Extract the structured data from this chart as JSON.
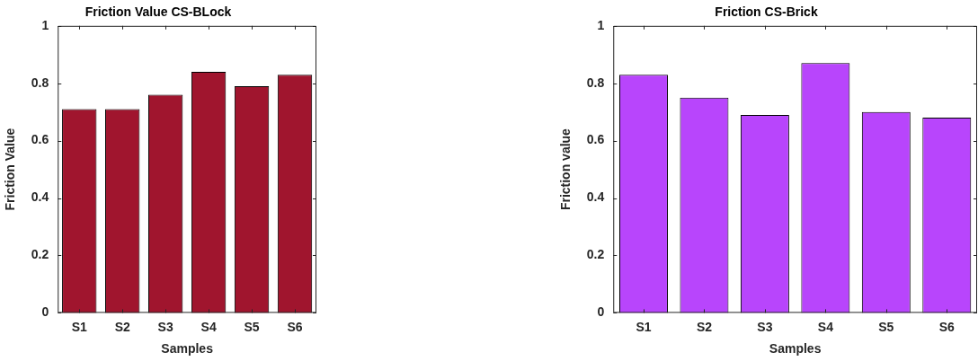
{
  "chart_data": [
    {
      "type": "bar",
      "title": "Friction Value CS-BLock",
      "xlabel": "Samples",
      "ylabel": "Friction Value",
      "categories": [
        "S1",
        "S2",
        "S3",
        "S4",
        "S5",
        "S6"
      ],
      "values": [
        0.71,
        0.71,
        0.76,
        0.84,
        0.79,
        0.83
      ],
      "color": "#a0152e",
      "ylim": [
        0,
        1
      ],
      "yticks": [
        0,
        0.2,
        0.4,
        0.6,
        0.8,
        1
      ],
      "grid": false,
      "legend": false
    },
    {
      "type": "bar",
      "title": "Friction CS-Brick",
      "xlabel": "Samples",
      "ylabel": "Friction value",
      "categories": [
        "S1",
        "S2",
        "S3",
        "S4",
        "S5",
        "S6"
      ],
      "values": [
        0.83,
        0.75,
        0.69,
        0.87,
        0.7,
        0.68
      ],
      "color": "#b845fc",
      "ylim": [
        0,
        1
      ],
      "yticks": [
        0,
        0.2,
        0.4,
        0.6,
        0.8,
        1
      ],
      "grid": false,
      "legend": false
    }
  ]
}
